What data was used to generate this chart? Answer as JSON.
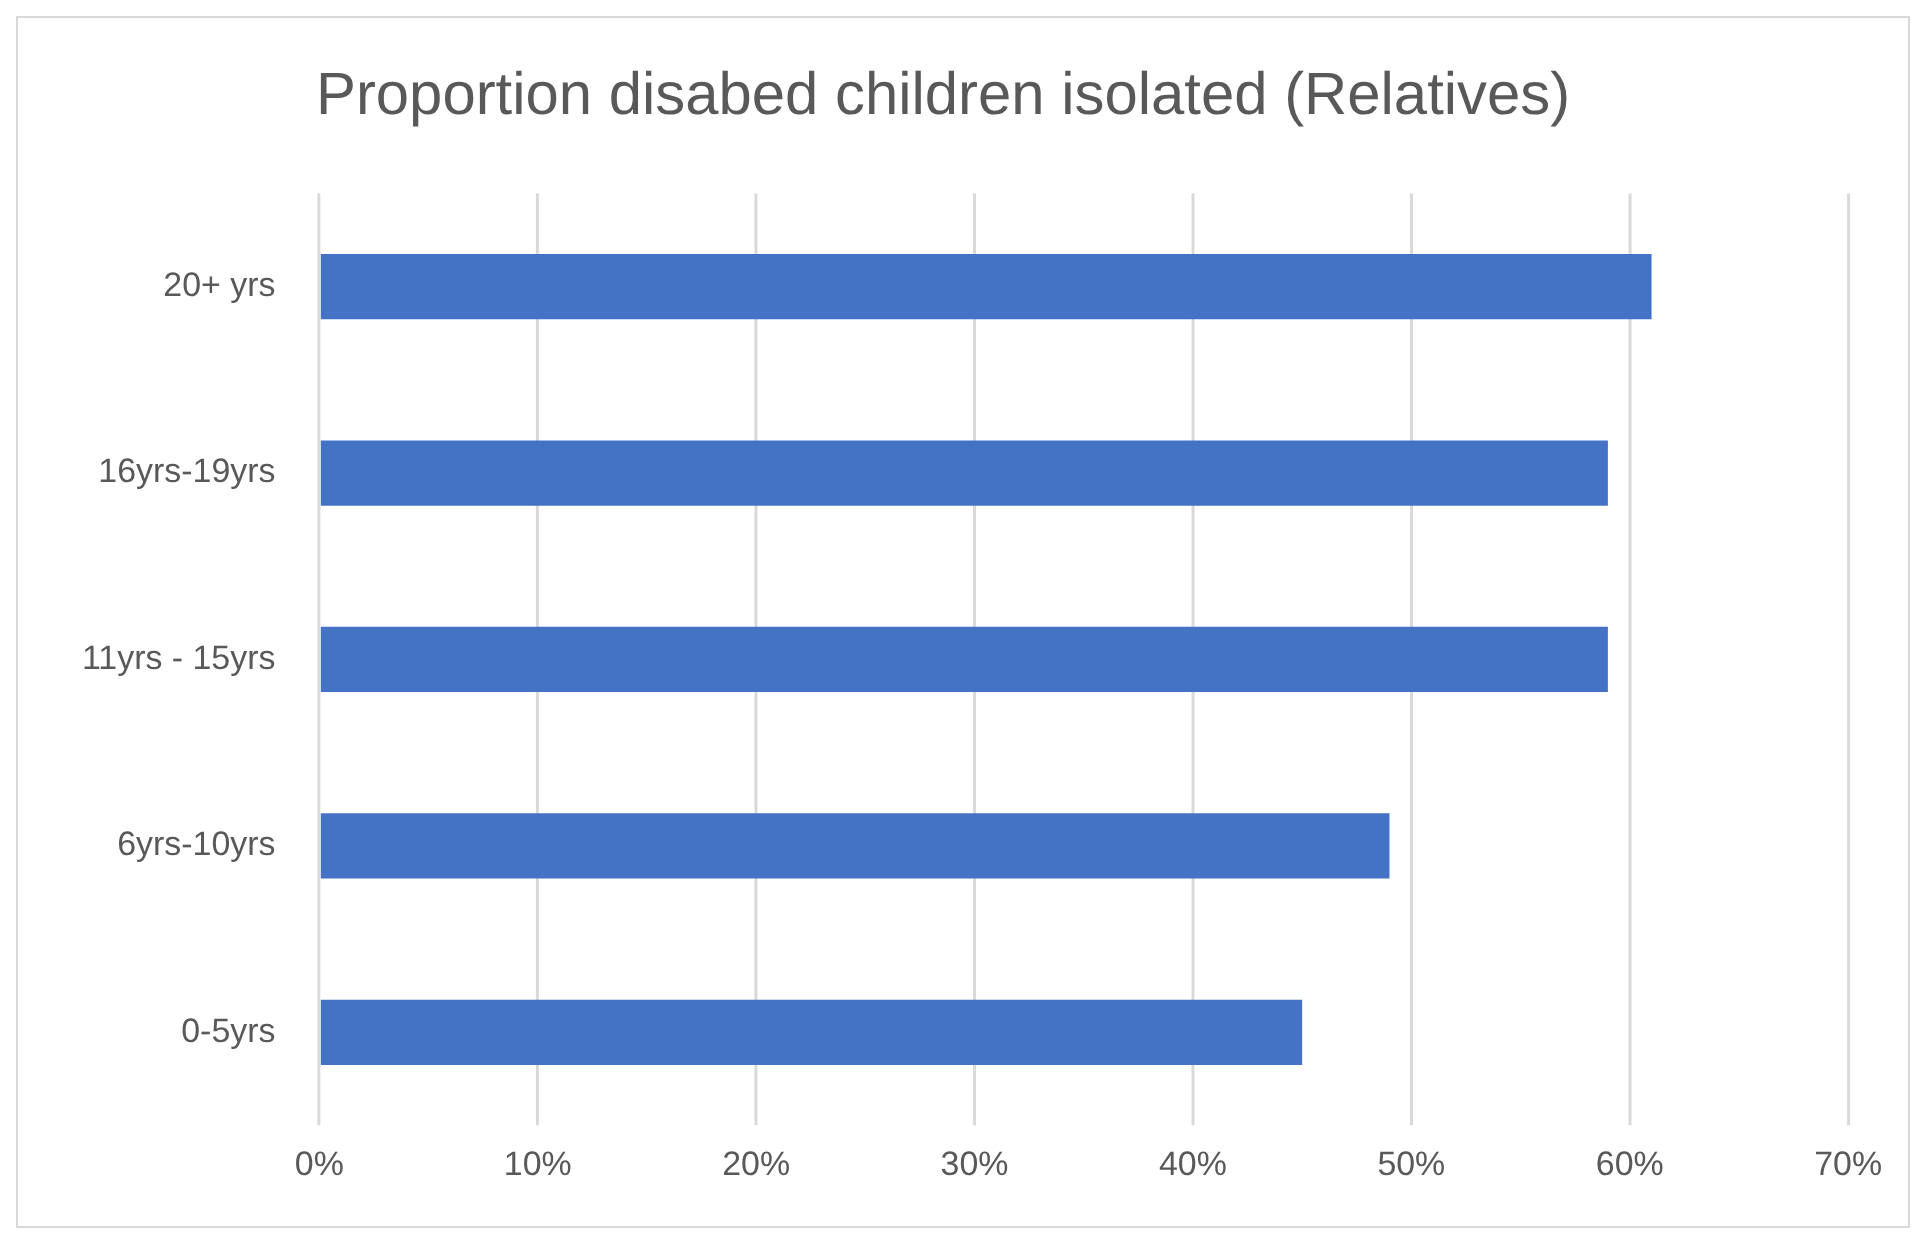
{
  "chart_data": {
    "type": "bar",
    "orientation": "horizontal",
    "title": "Proportion disabed children isolated (Relatives)",
    "categories": [
      "20+ yrs",
      "16yrs-19yrs",
      "11yrs - 15yrs",
      "6yrs-10yrs",
      "0-5yrs"
    ],
    "values": [
      0.61,
      0.59,
      0.59,
      0.49,
      0.45
    ],
    "color": "#4472c4",
    "xlim": [
      0,
      0.7
    ],
    "xticks": [
      {
        "value": 0,
        "label": "0%"
      },
      {
        "value": 0.1,
        "label": "10%"
      },
      {
        "value": 0.2,
        "label": "20%"
      },
      {
        "value": 0.3,
        "label": "30%"
      },
      {
        "value": 0.4,
        "label": "40%"
      },
      {
        "value": 0.5,
        "label": "50%"
      },
      {
        "value": 0.6,
        "label": "60%"
      },
      {
        "value": 0.7,
        "label": "70%"
      }
    ],
    "grid": "x"
  }
}
